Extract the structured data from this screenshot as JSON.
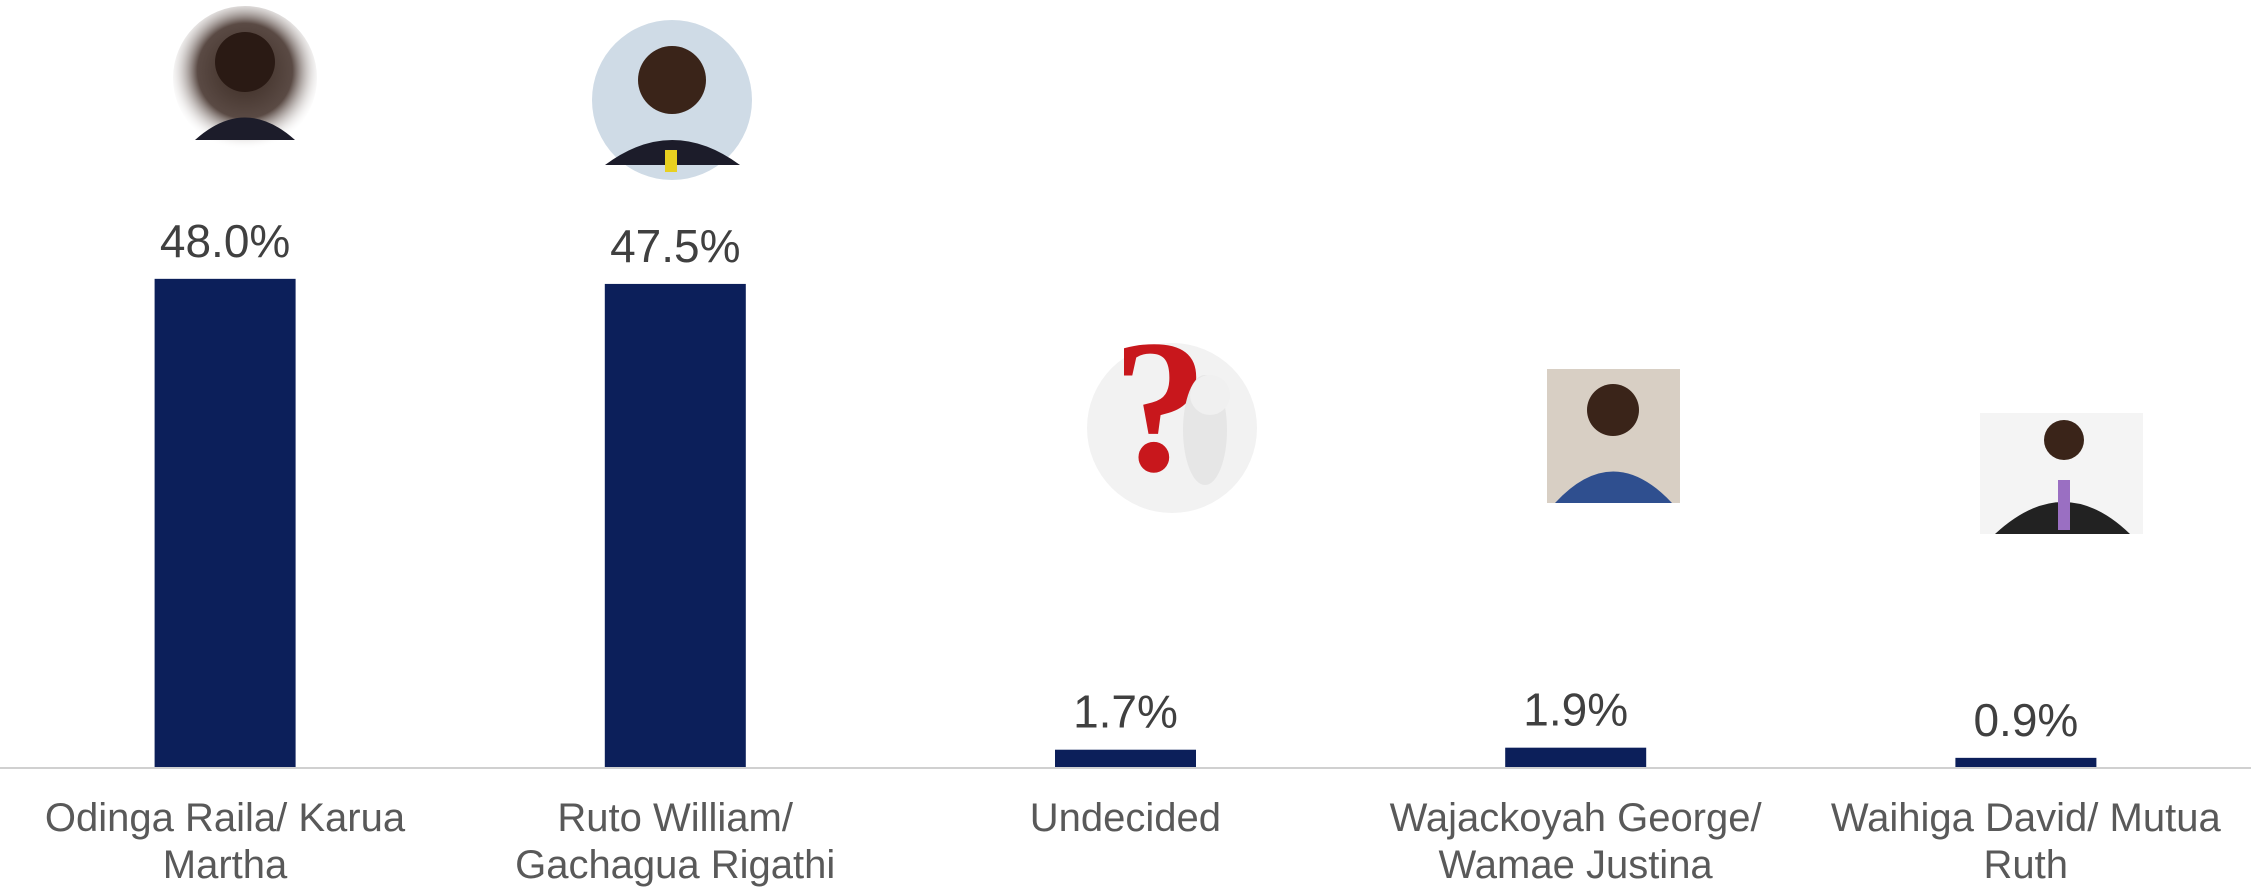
{
  "chart_data": {
    "type": "bar",
    "categories": [
      "Odinga Raila/ Karua\nMartha",
      "Ruto William/\nGachagua Rigathi",
      "Undecided",
      "Wajackoyah George/\nWamae Justina",
      "Waihiga David/ Mutua\nRuth"
    ],
    "values": [
      48.0,
      47.5,
      1.7,
      1.9,
      0.9
    ],
    "value_labels": [
      "48.0%",
      "47.5%",
      "1.7%",
      "1.9%",
      "0.9%"
    ],
    "color": "#0c1f5a"
  }
}
